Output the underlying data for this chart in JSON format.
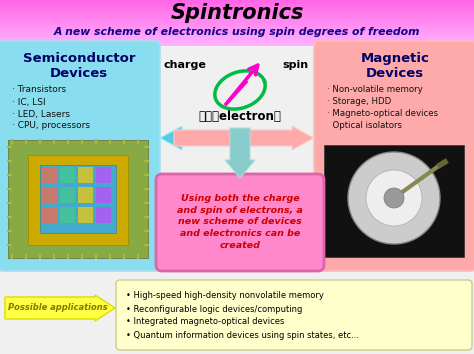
{
  "title": "Spintronics",
  "subtitle": "A new scheme of electronics using spin degrees of freedom",
  "bg_color": "#f0f0f0",
  "header_bg_top": "#ff88ff",
  "header_bg_bot": "#ffaaff",
  "left_box_color": "#88ddee",
  "right_box_color": "#ffaaaa",
  "center_box_color": "#ff88cc",
  "bottom_arrow_color": "#ffff44",
  "bottom_box_color": "#ffffcc",
  "left_title": "Semiconductor\nDevices",
  "left_items": [
    "· Transistors",
    "· IC, LSI",
    "· LED, Lasers",
    "· CPU, processors"
  ],
  "right_title": "Magnetic\nDevices",
  "right_items": [
    "· Non-volatile memory",
    "· Storage, HDD",
    "· Magneto-optical devices",
    "  Optical isolators"
  ],
  "center_top_label_left": "charge",
  "center_top_label_right": "spin",
  "center_electron_label": "電子（electron）",
  "center_box_text": "Using both the charge\nand spin of electrons, a\nnew scheme of devices\nand electronics can be\ncreated",
  "bottom_left_label": "Possible applications",
  "bottom_right_items": [
    "• High-speed high-density nonvolatile memory",
    "• Reconfigurable logic devices/computing",
    "• Integrated magneto-optical devices",
    "• Quantum information devices using spin states, etc..."
  ],
  "arrow_cyan": "#55ccdd",
  "arrow_salmon": "#ffaaaa",
  "arrow_down": "#88cccc",
  "magenta": "#ff00cc",
  "green_orbit": "#00bb44"
}
